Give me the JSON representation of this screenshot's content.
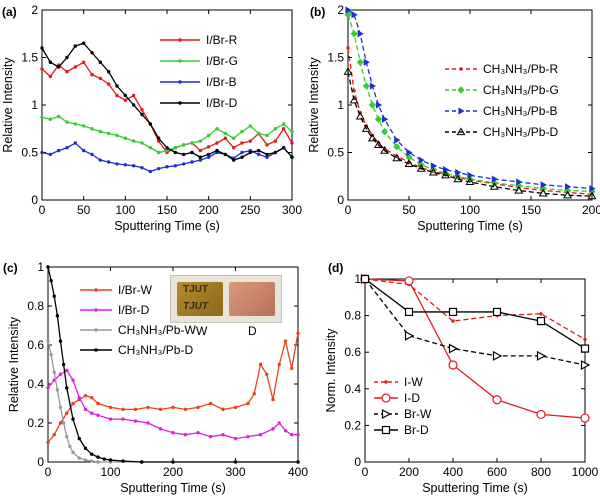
{
  "chart_data": [
    {
      "panel_label": "(a)",
      "type": "line",
      "xlabel": "Sputtering Time (s)",
      "ylabel": "Relative Intensity",
      "xlim": [
        0,
        300
      ],
      "ylim": [
        0,
        2
      ],
      "xticks": [
        0,
        50,
        100,
        150,
        200,
        250,
        300
      ],
      "yticks": [
        0,
        0.5,
        1,
        1.5,
        2
      ],
      "legend_position": "top-right",
      "series": [
        {
          "name": "I/Br-R",
          "color": "#e41a1c",
          "marker": "dot",
          "x": [
            0,
            10,
            20,
            30,
            40,
            50,
            60,
            70,
            80,
            90,
            100,
            110,
            120,
            130,
            140,
            150,
            160,
            170,
            180,
            190,
            200,
            210,
            220,
            230,
            240,
            250,
            260,
            270,
            280,
            290,
            300
          ],
          "y": [
            1.38,
            1.3,
            1.42,
            1.35,
            1.4,
            1.45,
            1.32,
            1.28,
            1.22,
            1.1,
            1.05,
            1.1,
            0.95,
            0.8,
            0.62,
            0.5,
            0.55,
            0.58,
            0.6,
            0.52,
            0.56,
            0.6,
            0.65,
            0.55,
            0.6,
            0.62,
            0.7,
            0.58,
            0.62,
            0.75,
            0.6
          ]
        },
        {
          "name": "I/Br-G",
          "color": "#33cc33",
          "marker": "dot",
          "x": [
            0,
            10,
            20,
            30,
            40,
            50,
            60,
            70,
            80,
            90,
            100,
            110,
            120,
            130,
            140,
            150,
            160,
            170,
            180,
            190,
            200,
            210,
            220,
            230,
            240,
            250,
            260,
            270,
            280,
            290,
            300
          ],
          "y": [
            0.87,
            0.85,
            0.88,
            0.82,
            0.8,
            0.78,
            0.75,
            0.72,
            0.7,
            0.68,
            0.65,
            0.62,
            0.6,
            0.55,
            0.5,
            0.52,
            0.55,
            0.58,
            0.6,
            0.62,
            0.68,
            0.75,
            0.7,
            0.65,
            0.72,
            0.78,
            0.7,
            0.68,
            0.75,
            0.8,
            0.72
          ]
        },
        {
          "name": "I/Br-B",
          "color": "#1f2fd1",
          "marker": "dot",
          "x": [
            0,
            10,
            20,
            30,
            40,
            50,
            60,
            70,
            80,
            90,
            100,
            110,
            120,
            130,
            140,
            150,
            160,
            170,
            180,
            190,
            200,
            210,
            220,
            230,
            240,
            250,
            260,
            270,
            280,
            290,
            300
          ],
          "y": [
            0.5,
            0.48,
            0.52,
            0.55,
            0.6,
            0.52,
            0.48,
            0.42,
            0.4,
            0.38,
            0.37,
            0.36,
            0.34,
            0.3,
            0.33,
            0.35,
            0.36,
            0.38,
            0.4,
            0.42,
            0.45,
            0.5,
            0.48,
            0.44,
            0.5,
            0.52,
            0.48,
            0.45,
            0.5,
            0.55,
            0.45
          ]
        },
        {
          "name": "I/Br-D",
          "color": "#000000",
          "marker": "dot",
          "x": [
            0,
            10,
            20,
            30,
            40,
            50,
            60,
            70,
            80,
            90,
            100,
            110,
            120,
            130,
            140,
            150,
            160,
            170,
            180,
            190,
            200,
            210,
            220,
            230,
            240,
            250,
            260,
            270,
            280,
            290,
            300
          ],
          "y": [
            1.6,
            1.45,
            1.4,
            1.5,
            1.62,
            1.65,
            1.55,
            1.45,
            1.35,
            1.2,
            1.1,
            1.0,
            0.9,
            0.8,
            0.65,
            0.55,
            0.5,
            0.48,
            0.5,
            0.45,
            0.48,
            0.52,
            0.48,
            0.42,
            0.45,
            0.5,
            0.52,
            0.48,
            0.5,
            0.55,
            0.45
          ]
        }
      ]
    },
    {
      "panel_label": "(b)",
      "type": "line",
      "xlabel": "Sputtering Time (s)",
      "ylabel": "Relative Intensity",
      "xlim": [
        0,
        200
      ],
      "ylim": [
        0,
        2
      ],
      "xticks": [
        0,
        50,
        100,
        150,
        200
      ],
      "yticks": [
        0,
        0.5,
        1,
        1.5,
        2
      ],
      "legend_position": "top-right",
      "series": [
        {
          "name": "CH3NH3/Pb-R",
          "color": "#e41a1c",
          "marker": "dot",
          "dashed": true,
          "x": [
            0,
            5,
            10,
            15,
            20,
            25,
            30,
            40,
            50,
            60,
            70,
            80,
            90,
            100,
            120,
            140,
            160,
            180,
            200
          ],
          "y": [
            1.6,
            1.15,
            0.92,
            0.78,
            0.68,
            0.6,
            0.54,
            0.46,
            0.4,
            0.34,
            0.3,
            0.27,
            0.24,
            0.21,
            0.17,
            0.13,
            0.1,
            0.08,
            0.06
          ]
        },
        {
          "name": "CH3NH3/Pb-G",
          "color": "#33cc33",
          "marker": "diamond",
          "dashed": true,
          "x": [
            0,
            5,
            10,
            15,
            20,
            25,
            30,
            40,
            50,
            60,
            70,
            80,
            90,
            100,
            120,
            140,
            160,
            180,
            200
          ],
          "y": [
            1.95,
            1.75,
            1.45,
            1.2,
            1.0,
            0.85,
            0.72,
            0.56,
            0.45,
            0.37,
            0.32,
            0.28,
            0.25,
            0.22,
            0.18,
            0.15,
            0.12,
            0.1,
            0.09
          ]
        },
        {
          "name": "CH3NH3/Pb-B",
          "color": "#1f2fd1",
          "marker": "triangle-right",
          "dashed": true,
          "x": [
            0,
            5,
            10,
            15,
            20,
            25,
            30,
            40,
            50,
            60,
            70,
            80,
            90,
            100,
            120,
            140,
            160,
            180,
            200
          ],
          "y": [
            2.0,
            1.95,
            1.75,
            1.45,
            1.2,
            1.0,
            0.85,
            0.63,
            0.5,
            0.42,
            0.36,
            0.32,
            0.29,
            0.26,
            0.22,
            0.19,
            0.16,
            0.14,
            0.12
          ]
        },
        {
          "name": "CH3NH3/Pb-D",
          "color": "#000000",
          "marker": "triangle-up",
          "dashed": true,
          "x": [
            0,
            5,
            10,
            15,
            20,
            25,
            30,
            40,
            50,
            60,
            70,
            80,
            90,
            100,
            120,
            140,
            160,
            180,
            200
          ],
          "y": [
            1.35,
            1.05,
            0.88,
            0.75,
            0.65,
            0.58,
            0.52,
            0.44,
            0.38,
            0.33,
            0.29,
            0.26,
            0.22,
            0.19,
            0.14,
            0.1,
            0.07,
            0.05,
            0.04
          ]
        }
      ]
    },
    {
      "panel_label": "(c)",
      "type": "line",
      "xlabel": "Sputtering Time (s)",
      "ylabel": "Relative Intensity",
      "xlim": [
        0,
        400
      ],
      "ylim": [
        0,
        1
      ],
      "xticks": [
        0,
        100,
        200,
        300,
        400
      ],
      "yticks": [
        0,
        0.2,
        0.4,
        0.6,
        0.8,
        1
      ],
      "legend_position": "top-right",
      "inset_labels": [
        "TJUT",
        "TJUT",
        "W",
        "D"
      ],
      "series": [
        {
          "name": "I/Br-W",
          "color": "#e8441a",
          "marker": "dot",
          "x": [
            0,
            10,
            20,
            30,
            40,
            50,
            60,
            70,
            80,
            100,
            120,
            140,
            160,
            180,
            200,
            220,
            240,
            260,
            280,
            300,
            320,
            330,
            340,
            350,
            360,
            370,
            380,
            390,
            400
          ],
          "y": [
            0.1,
            0.14,
            0.2,
            0.25,
            0.3,
            0.32,
            0.34,
            0.33,
            0.3,
            0.28,
            0.27,
            0.27,
            0.28,
            0.27,
            0.28,
            0.27,
            0.28,
            0.3,
            0.27,
            0.28,
            0.3,
            0.35,
            0.5,
            0.45,
            0.32,
            0.5,
            0.62,
            0.48,
            0.66
          ]
        },
        {
          "name": "I/Br-D",
          "color": "#e020e0",
          "marker": "dot",
          "x": [
            0,
            10,
            20,
            30,
            40,
            50,
            60,
            70,
            80,
            100,
            120,
            140,
            160,
            180,
            200,
            220,
            240,
            260,
            280,
            300,
            320,
            340,
            360,
            370,
            380,
            390,
            400
          ],
          "y": [
            0.38,
            0.42,
            0.45,
            0.47,
            0.42,
            0.33,
            0.27,
            0.25,
            0.24,
            0.22,
            0.22,
            0.21,
            0.2,
            0.17,
            0.15,
            0.14,
            0.15,
            0.13,
            0.14,
            0.12,
            0.13,
            0.14,
            0.17,
            0.2,
            0.16,
            0.14,
            0.14
          ]
        },
        {
          "name": "CH3NH3/Pb-W",
          "color": "#999999",
          "marker": "dot",
          "x": [
            0,
            5,
            10,
            15,
            20,
            25,
            30,
            35,
            40,
            50,
            60,
            70,
            80,
            100,
            150,
            200,
            300,
            400
          ],
          "y": [
            0.62,
            0.55,
            0.46,
            0.37,
            0.28,
            0.2,
            0.13,
            0.08,
            0.05,
            0.02,
            0.01,
            0.005,
            0.0,
            0.0,
            0.0,
            0.0,
            0.0,
            0.0
          ]
        },
        {
          "name": "CH3NH3/Pb-D",
          "color": "#000000",
          "marker": "dot",
          "x": [
            0,
            5,
            10,
            15,
            20,
            25,
            30,
            40,
            50,
            60,
            70,
            80,
            90,
            100,
            120,
            150,
            200,
            300,
            400
          ],
          "y": [
            1.0,
            0.93,
            0.85,
            0.75,
            0.62,
            0.5,
            0.38,
            0.22,
            0.12,
            0.07,
            0.04,
            0.025,
            0.015,
            0.01,
            0.005,
            0.0,
            0.0,
            0.0,
            0.0
          ]
        }
      ]
    },
    {
      "panel_label": "(d)",
      "type": "line",
      "xlabel": "Sputtering Time (s)",
      "ylabel": "Norm. Intensity",
      "xlim": [
        0,
        1000
      ],
      "ylim": [
        0,
        1
      ],
      "xticks": [
        0,
        200,
        400,
        600,
        800,
        1000
      ],
      "yticks": [
        0,
        0.2,
        0.4,
        0.6,
        0.8,
        1
      ],
      "legend_position": "bottom-left",
      "series": [
        {
          "name": "I-W",
          "color": "#e41a1c",
          "marker": "dot",
          "dashed": true,
          "x": [
            0,
            200,
            400,
            600,
            800,
            1000
          ],
          "y": [
            1.0,
            0.97,
            0.77,
            0.8,
            0.81,
            0.67
          ]
        },
        {
          "name": "I-D",
          "color": "#e41a1c",
          "marker": "circle-open",
          "dashed": false,
          "x": [
            0,
            200,
            400,
            600,
            800,
            1000
          ],
          "y": [
            1.0,
            0.99,
            0.53,
            0.34,
            0.26,
            0.24
          ]
        },
        {
          "name": "Br-W",
          "color": "#000000",
          "marker": "triangle-right-open",
          "dashed": true,
          "x": [
            0,
            200,
            400,
            600,
            800,
            1000
          ],
          "y": [
            1.0,
            0.69,
            0.62,
            0.58,
            0.58,
            0.53
          ]
        },
        {
          "name": "Br-D",
          "color": "#000000",
          "marker": "square-open",
          "dashed": false,
          "x": [
            0,
            200,
            400,
            600,
            800,
            1000
          ],
          "y": [
            1.0,
            0.82,
            0.82,
            0.82,
            0.77,
            0.62
          ]
        }
      ]
    }
  ]
}
